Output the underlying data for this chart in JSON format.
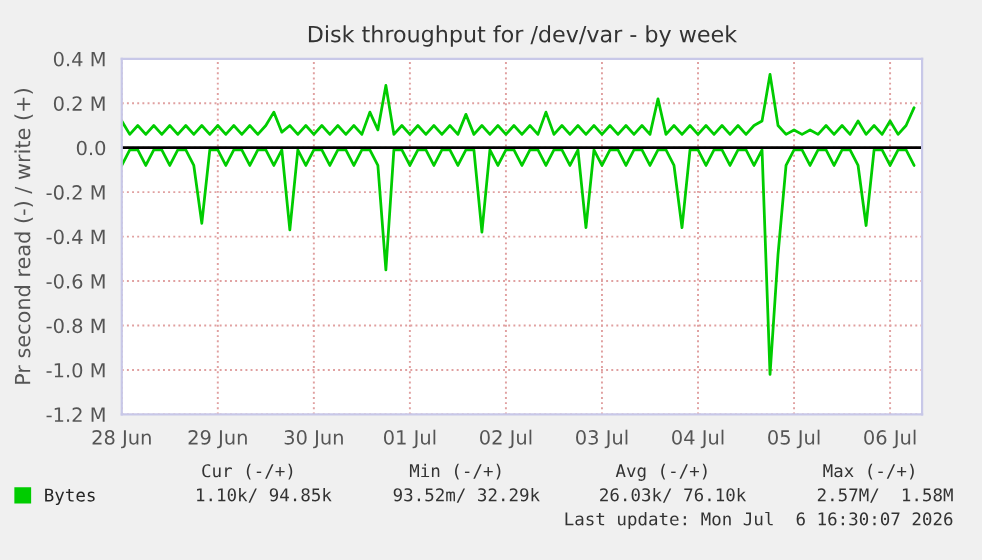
{
  "chart_data": {
    "type": "line",
    "title": "Disk throughput for /dev/var - by week",
    "ylabel": "Pr second read (-) / write (+)",
    "x": [
      "2026-06-28T00:00",
      "2026-06-28T02:00",
      "2026-06-28T04:00",
      "2026-06-28T06:00",
      "2026-06-28T08:00",
      "2026-06-28T10:00",
      "2026-06-28T12:00",
      "2026-06-28T14:00",
      "2026-06-28T16:00",
      "2026-06-28T18:00",
      "2026-06-28T20:00",
      "2026-06-28T22:00",
      "2026-06-29T00:00",
      "2026-06-29T02:00",
      "2026-06-29T04:00",
      "2026-06-29T06:00",
      "2026-06-29T08:00",
      "2026-06-29T10:00",
      "2026-06-29T12:00",
      "2026-06-29T14:00",
      "2026-06-29T16:00",
      "2026-06-29T18:00",
      "2026-06-29T20:00",
      "2026-06-29T22:00",
      "2026-06-30T00:00",
      "2026-06-30T02:00",
      "2026-06-30T04:00",
      "2026-06-30T06:00",
      "2026-06-30T08:00",
      "2026-06-30T10:00",
      "2026-06-30T12:00",
      "2026-06-30T14:00",
      "2026-06-30T16:00",
      "2026-06-30T18:00",
      "2026-06-30T20:00",
      "2026-06-30T22:00",
      "2026-07-01T00:00",
      "2026-07-01T02:00",
      "2026-07-01T04:00",
      "2026-07-01T06:00",
      "2026-07-01T08:00",
      "2026-07-01T10:00",
      "2026-07-01T12:00",
      "2026-07-01T14:00",
      "2026-07-01T16:00",
      "2026-07-01T18:00",
      "2026-07-01T20:00",
      "2026-07-01T22:00",
      "2026-07-02T00:00",
      "2026-07-02T02:00",
      "2026-07-02T04:00",
      "2026-07-02T06:00",
      "2026-07-02T08:00",
      "2026-07-02T10:00",
      "2026-07-02T12:00",
      "2026-07-02T14:00",
      "2026-07-02T16:00",
      "2026-07-02T18:00",
      "2026-07-02T20:00",
      "2026-07-02T22:00",
      "2026-07-03T00:00",
      "2026-07-03T02:00",
      "2026-07-03T04:00",
      "2026-07-03T06:00",
      "2026-07-03T08:00",
      "2026-07-03T10:00",
      "2026-07-03T12:00",
      "2026-07-03T14:00",
      "2026-07-03T16:00",
      "2026-07-03T18:00",
      "2026-07-03T20:00",
      "2026-07-03T22:00",
      "2026-07-04T00:00",
      "2026-07-04T02:00",
      "2026-07-04T04:00",
      "2026-07-04T06:00",
      "2026-07-04T08:00",
      "2026-07-04T10:00",
      "2026-07-04T12:00",
      "2026-07-04T14:00",
      "2026-07-04T16:00",
      "2026-07-04T18:00",
      "2026-07-04T20:00",
      "2026-07-04T22:00",
      "2026-07-05T00:00",
      "2026-07-05T02:00",
      "2026-07-05T04:00",
      "2026-07-05T06:00",
      "2026-07-05T08:00",
      "2026-07-05T10:00",
      "2026-07-05T12:00",
      "2026-07-05T14:00",
      "2026-07-05T16:00",
      "2026-07-05T18:00",
      "2026-07-05T20:00",
      "2026-07-05T22:00",
      "2026-07-06T00:00",
      "2026-07-06T02:00",
      "2026-07-06T04:00",
      "2026-07-06T06:00"
    ],
    "series": [
      {
        "name": "Bytes",
        "color": "#00cc00",
        "values": [
          0.12,
          0.06,
          0.1,
          0.06,
          0.1,
          0.06,
          0.1,
          0.06,
          0.1,
          0.06,
          0.1,
          0.06,
          0.1,
          0.06,
          0.1,
          0.06,
          0.1,
          0.06,
          0.1,
          0.16,
          0.07,
          0.1,
          0.06,
          0.1,
          0.06,
          0.1,
          0.06,
          0.1,
          0.06,
          0.1,
          0.06,
          0.16,
          0.08,
          0.28,
          0.06,
          0.1,
          0.06,
          0.1,
          0.06,
          0.1,
          0.06,
          0.1,
          0.06,
          0.15,
          0.06,
          0.1,
          0.06,
          0.1,
          0.06,
          0.1,
          0.06,
          0.1,
          0.06,
          0.16,
          0.06,
          0.1,
          0.06,
          0.1,
          0.06,
          0.1,
          0.06,
          0.1,
          0.06,
          0.1,
          0.06,
          0.1,
          0.06,
          0.22,
          0.06,
          0.1,
          0.06,
          0.1,
          0.06,
          0.1,
          0.06,
          0.1,
          0.06,
          0.1,
          0.06,
          0.1,
          0.12,
          0.33,
          0.1,
          0.06,
          0.08,
          0.06,
          0.08,
          0.06,
          0.1,
          0.06,
          0.1,
          0.06,
          0.12,
          0.06,
          0.1,
          0.06,
          0.12,
          0.06,
          0.1,
          0.18
        ]
      },
      {
        "color": "#00cc00",
        "values": [
          -0.08,
          -0.01,
          -0.01,
          -0.08,
          -0.01,
          -0.01,
          -0.08,
          -0.01,
          -0.01,
          -0.08,
          -0.34,
          -0.01,
          -0.01,
          -0.08,
          -0.01,
          -0.01,
          -0.08,
          -0.01,
          -0.01,
          -0.08,
          -0.01,
          -0.37,
          -0.01,
          -0.08,
          -0.01,
          -0.01,
          -0.08,
          -0.01,
          -0.01,
          -0.08,
          -0.01,
          -0.01,
          -0.08,
          -0.55,
          -0.01,
          -0.01,
          -0.08,
          -0.01,
          -0.01,
          -0.08,
          -0.01,
          -0.01,
          -0.08,
          -0.01,
          -0.01,
          -0.38,
          -0.01,
          -0.08,
          -0.01,
          -0.01,
          -0.08,
          -0.01,
          -0.01,
          -0.08,
          -0.01,
          -0.01,
          -0.08,
          -0.01,
          -0.36,
          -0.01,
          -0.08,
          -0.01,
          -0.01,
          -0.08,
          -0.01,
          -0.01,
          -0.08,
          -0.01,
          -0.01,
          -0.08,
          -0.36,
          -0.01,
          -0.01,
          -0.08,
          -0.01,
          -0.01,
          -0.08,
          -0.01,
          -0.01,
          -0.08,
          -0.01,
          -1.02,
          -0.48,
          -0.08,
          -0.01,
          -0.01,
          -0.08,
          -0.01,
          -0.01,
          -0.08,
          -0.01,
          -0.01,
          -0.08,
          -0.35,
          -0.01,
          -0.01,
          -0.08,
          -0.01,
          -0.01,
          -0.08
        ]
      }
    ],
    "xlim": [
      "2026-06-28T00:00",
      "2026-07-06T08:00"
    ],
    "xticks": [
      {
        "value": "2026-06-28",
        "label": "28 Jun"
      },
      {
        "value": "2026-06-29",
        "label": "29 Jun"
      },
      {
        "value": "2026-06-30",
        "label": "30 Jun"
      },
      {
        "value": "2026-07-01",
        "label": "01 Jul"
      },
      {
        "value": "2026-07-02",
        "label": "02 Jul"
      },
      {
        "value": "2026-07-03",
        "label": "03 Jul"
      },
      {
        "value": "2026-07-04",
        "label": "04 Jul"
      },
      {
        "value": "2026-07-05",
        "label": "05 Jul"
      },
      {
        "value": "2026-07-06",
        "label": "06 Jul"
      }
    ],
    "ylim": [
      -1.2,
      0.4
    ],
    "yticks": [
      {
        "value": -1.2,
        "label": "-1.2 M"
      },
      {
        "value": -1.0,
        "label": "-1.0 M"
      },
      {
        "value": -0.8,
        "label": "-0.8 M"
      },
      {
        "value": -0.6,
        "label": "-0.6 M"
      },
      {
        "value": -0.4,
        "label": "-0.4 M"
      },
      {
        "value": -0.2,
        "label": "-0.2 M"
      },
      {
        "value": 0,
        "label": "0.0"
      },
      {
        "value": 0.2,
        "label": "0.2 M"
      },
      {
        "value": 0.4,
        "label": "0.4 M"
      }
    ],
    "ref_lines": [
      {
        "axis": "y",
        "value": 0,
        "color": "#000000"
      }
    ],
    "grid": true,
    "legend": "bottom left",
    "marker": "none",
    "line_style": "solid",
    "annotations": [
      "Cur (-/+)",
      "Min (-/+)",
      "Avg (-/+)",
      "Max (-/+)",
      "1.10k/ 94.85k",
      "93.52m/ 32.29k",
      "26.03k/ 76.10k",
      "2.57M/  1.58M",
      "Last update: Mon Jul  6 16:30:07 2026"
    ]
  }
}
